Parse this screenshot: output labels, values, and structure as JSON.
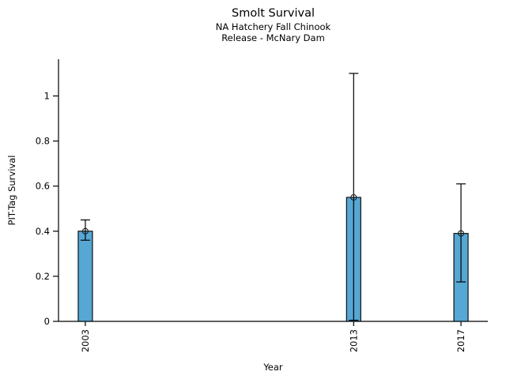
{
  "figure": {
    "title": "Smolt Survival",
    "subtitle1": "NA Hatchery Fall Chinook",
    "subtitle2": "Release - McNary Dam"
  },
  "chart_data": {
    "type": "bar",
    "title": "Smolt Survival",
    "subtitles": [
      "NA Hatchery Fall Chinook",
      "Release - McNary Dam"
    ],
    "xlabel": "Year",
    "ylabel": "PIT-Tag Survival",
    "categories": [
      2003,
      2013,
      2017
    ],
    "xtick_labels": [
      "2003",
      "2013",
      "2017"
    ],
    "xtick_rotation": 90,
    "values": [
      0.4,
      0.55,
      0.39
    ],
    "error_low": [
      0.36,
      0.005,
      0.175
    ],
    "error_high": [
      0.45,
      1.1,
      0.61
    ],
    "marker": "open-circle",
    "xlim": [
      2002,
      2018
    ],
    "ylim": [
      0,
      1.163
    ],
    "yticks": [
      0,
      0.2,
      0.4,
      0.6,
      0.8,
      1
    ],
    "ytick_labels": [
      "0",
      "0.2",
      "0.4",
      "0.6",
      "0.8",
      "1"
    ],
    "grid": false,
    "legend": null,
    "bar_color": "#56A7D4",
    "bar_edge_color": "#000000",
    "error_color": "#000000",
    "axis_color": "#000000",
    "text_color": "#000000"
  }
}
